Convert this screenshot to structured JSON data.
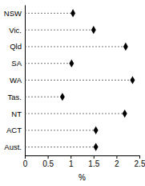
{
  "chart_data": {
    "type": "dot",
    "orientation": "horizontal",
    "categories": [
      "NSW",
      "Vic.",
      "Qld",
      "SA",
      "WA",
      "Tas.",
      "NT",
      "ACT",
      "Aust."
    ],
    "values": [
      1.05,
      1.5,
      2.2,
      1.02,
      2.35,
      0.82,
      2.18,
      1.55,
      1.55
    ],
    "color": "#000000",
    "marker": "diamond",
    "line_style": "dashed",
    "x_label": "%",
    "xlim": [
      0,
      2.5
    ],
    "xticks": [
      0,
      0.5,
      1,
      1.5,
      2,
      2.5
    ]
  }
}
